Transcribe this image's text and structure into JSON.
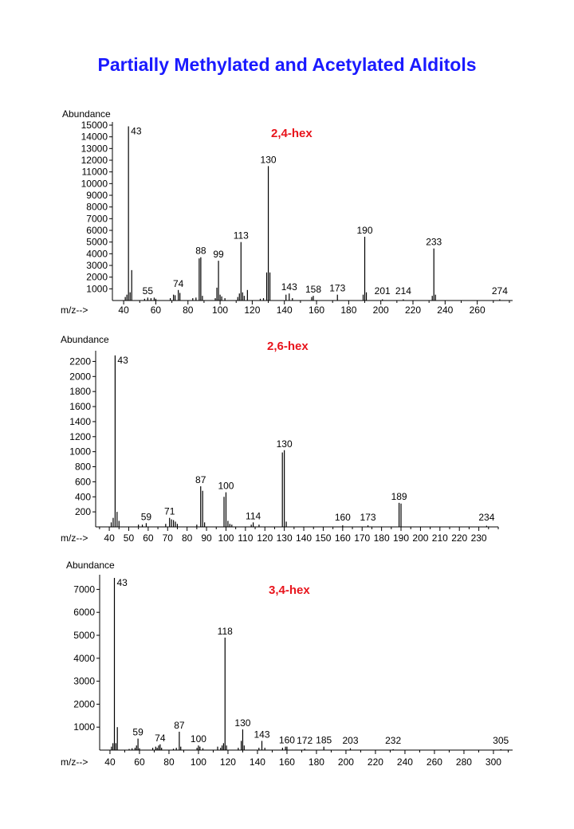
{
  "title": "Partially Methylated and Acetylated Alditols",
  "colors": {
    "title": "#1a1aff",
    "chart_label": "#e8141c",
    "axis": "#000000",
    "peaks": "#000000"
  },
  "chart_data": [
    {
      "type": "bar",
      "label": "2,4-hex",
      "ylabel": "Abundance",
      "xlabel": "m/z-->",
      "xlim": [
        33,
        282
      ],
      "ylim": [
        0,
        15000
      ],
      "yticks": [
        1000,
        2000,
        3000,
        4000,
        5000,
        6000,
        7000,
        8000,
        9000,
        10000,
        11000,
        12000,
        13000,
        14000,
        15000
      ],
      "xticks": [
        40,
        60,
        80,
        100,
        120,
        140,
        160,
        180,
        200,
        220,
        240,
        260
      ],
      "peaks": [
        {
          "mz": 41,
          "v": 300
        },
        {
          "mz": 42,
          "v": 500
        },
        {
          "mz": 43,
          "v": 14900
        },
        {
          "mz": 44,
          "v": 700
        },
        {
          "mz": 45,
          "v": 2600
        },
        {
          "mz": 53,
          "v": 150
        },
        {
          "mz": 55,
          "v": 250
        },
        {
          "mz": 57,
          "v": 200
        },
        {
          "mz": 59,
          "v": 250
        },
        {
          "mz": 60,
          "v": 150
        },
        {
          "mz": 69,
          "v": 200
        },
        {
          "mz": 71,
          "v": 500
        },
        {
          "mz": 72,
          "v": 450
        },
        {
          "mz": 74,
          "v": 900
        },
        {
          "mz": 75,
          "v": 650
        },
        {
          "mz": 83,
          "v": 200
        },
        {
          "mz": 85,
          "v": 250
        },
        {
          "mz": 87,
          "v": 3600
        },
        {
          "mz": 88,
          "v": 3700
        },
        {
          "mz": 89,
          "v": 400
        },
        {
          "mz": 97,
          "v": 200
        },
        {
          "mz": 98,
          "v": 1100
        },
        {
          "mz": 99,
          "v": 3400
        },
        {
          "mz": 100,
          "v": 500
        },
        {
          "mz": 101,
          "v": 350
        },
        {
          "mz": 103,
          "v": 200
        },
        {
          "mz": 111,
          "v": 300
        },
        {
          "mz": 112,
          "v": 600
        },
        {
          "mz": 113,
          "v": 5000
        },
        {
          "mz": 114,
          "v": 700
        },
        {
          "mz": 115,
          "v": 400
        },
        {
          "mz": 117,
          "v": 900
        },
        {
          "mz": 125,
          "v": 150
        },
        {
          "mz": 127,
          "v": 200
        },
        {
          "mz": 129,
          "v": 2400
        },
        {
          "mz": 130,
          "v": 11500
        },
        {
          "mz": 131,
          "v": 2400
        },
        {
          "mz": 141,
          "v": 500
        },
        {
          "mz": 143,
          "v": 600
        },
        {
          "mz": 145,
          "v": 200
        },
        {
          "mz": 157,
          "v": 300
        },
        {
          "mz": 158,
          "v": 400
        },
        {
          "mz": 173,
          "v": 500
        },
        {
          "mz": 189,
          "v": 500
        },
        {
          "mz": 190,
          "v": 5450
        },
        {
          "mz": 191,
          "v": 700
        },
        {
          "mz": 201,
          "v": 100
        },
        {
          "mz": 214,
          "v": 100
        },
        {
          "mz": 232,
          "v": 400
        },
        {
          "mz": 233,
          "v": 4450
        },
        {
          "mz": 234,
          "v": 500
        },
        {
          "mz": 274,
          "v": 100
        }
      ],
      "labels": [
        {
          "mz": 43,
          "text": "43"
        },
        {
          "mz": 55,
          "text": "55"
        },
        {
          "mz": 74,
          "text": "74"
        },
        {
          "mz": 88,
          "text": "88"
        },
        {
          "mz": 99,
          "text": "99"
        },
        {
          "mz": 113,
          "text": "113"
        },
        {
          "mz": 130,
          "text": "130"
        },
        {
          "mz": 143,
          "text": "143"
        },
        {
          "mz": 158,
          "text": "158"
        },
        {
          "mz": 173,
          "text": "173"
        },
        {
          "mz": 190,
          "text": "190"
        },
        {
          "mz": 201,
          "text": "201"
        },
        {
          "mz": 214,
          "text": "214"
        },
        {
          "mz": 233,
          "text": "233"
        },
        {
          "mz": 274,
          "text": "274"
        }
      ]
    },
    {
      "type": "bar",
      "label": "2,6-hex",
      "ylabel": "Abundance",
      "xlabel": "m/z-->",
      "xlim": [
        33,
        240
      ],
      "ylim": [
        0,
        2300
      ],
      "yticks": [
        200,
        400,
        600,
        800,
        1000,
        1200,
        1400,
        1600,
        1800,
        2000,
        2200
      ],
      "xticks": [
        40,
        50,
        60,
        70,
        80,
        90,
        100,
        110,
        120,
        130,
        140,
        150,
        160,
        170,
        180,
        190,
        200,
        210,
        220,
        230
      ],
      "peaks": [
        {
          "mz": 41,
          "v": 60
        },
        {
          "mz": 42,
          "v": 120
        },
        {
          "mz": 43,
          "v": 2280
        },
        {
          "mz": 44,
          "v": 200
        },
        {
          "mz": 45,
          "v": 80
        },
        {
          "mz": 55,
          "v": 30
        },
        {
          "mz": 57,
          "v": 30
        },
        {
          "mz": 59,
          "v": 50
        },
        {
          "mz": 69,
          "v": 40
        },
        {
          "mz": 71,
          "v": 120
        },
        {
          "mz": 72,
          "v": 100
        },
        {
          "mz": 73,
          "v": 90
        },
        {
          "mz": 74,
          "v": 70
        },
        {
          "mz": 75,
          "v": 40
        },
        {
          "mz": 85,
          "v": 30
        },
        {
          "mz": 87,
          "v": 540
        },
        {
          "mz": 88,
          "v": 480
        },
        {
          "mz": 89,
          "v": 60
        },
        {
          "mz": 99,
          "v": 400
        },
        {
          "mz": 100,
          "v": 460
        },
        {
          "mz": 101,
          "v": 80
        },
        {
          "mz": 102,
          "v": 40
        },
        {
          "mz": 103,
          "v": 30
        },
        {
          "mz": 113,
          "v": 30
        },
        {
          "mz": 114,
          "v": 60
        },
        {
          "mz": 117,
          "v": 30
        },
        {
          "mz": 129,
          "v": 990
        },
        {
          "mz": 130,
          "v": 1020
        },
        {
          "mz": 131,
          "v": 70
        },
        {
          "mz": 160,
          "v": 20
        },
        {
          "mz": 173,
          "v": 20
        },
        {
          "mz": 189,
          "v": 320
        },
        {
          "mz": 190,
          "v": 310
        },
        {
          "mz": 234,
          "v": 15
        }
      ],
      "labels": [
        {
          "mz": 43,
          "text": "43"
        },
        {
          "mz": 59,
          "text": "59"
        },
        {
          "mz": 71,
          "text": "71"
        },
        {
          "mz": 87,
          "text": "87"
        },
        {
          "mz": 100,
          "text": "100"
        },
        {
          "mz": 114,
          "text": "114"
        },
        {
          "mz": 130,
          "text": "130"
        },
        {
          "mz": 160,
          "text": "160"
        },
        {
          "mz": 173,
          "text": "173"
        },
        {
          "mz": 189,
          "text": "189"
        },
        {
          "mz": 234,
          "text": "234"
        }
      ]
    },
    {
      "type": "bar",
      "label": "3,4-hex",
      "ylabel": "Abundance",
      "xlabel": "m/z-->",
      "xlim": [
        33,
        313
      ],
      "ylim": [
        0,
        7500
      ],
      "yticks": [
        1000,
        2000,
        3000,
        4000,
        5000,
        6000,
        7000
      ],
      "xticks": [
        40,
        60,
        80,
        100,
        120,
        140,
        160,
        180,
        200,
        220,
        240,
        260,
        280,
        300
      ],
      "peaks": [
        {
          "mz": 41,
          "v": 150
        },
        {
          "mz": 42,
          "v": 300
        },
        {
          "mz": 43,
          "v": 7500
        },
        {
          "mz": 44,
          "v": 300
        },
        {
          "mz": 45,
          "v": 1000
        },
        {
          "mz": 53,
          "v": 50
        },
        {
          "mz": 55,
          "v": 80
        },
        {
          "mz": 57,
          "v": 100
        },
        {
          "mz": 58,
          "v": 200
        },
        {
          "mz": 59,
          "v": 500
        },
        {
          "mz": 60,
          "v": 80
        },
        {
          "mz": 69,
          "v": 100
        },
        {
          "mz": 71,
          "v": 150
        },
        {
          "mz": 72,
          "v": 100
        },
        {
          "mz": 73,
          "v": 200
        },
        {
          "mz": 74,
          "v": 250
        },
        {
          "mz": 75,
          "v": 100
        },
        {
          "mz": 83,
          "v": 60
        },
        {
          "mz": 85,
          "v": 100
        },
        {
          "mz": 87,
          "v": 800
        },
        {
          "mz": 88,
          "v": 150
        },
        {
          "mz": 99,
          "v": 100
        },
        {
          "mz": 100,
          "v": 200
        },
        {
          "mz": 101,
          "v": 150
        },
        {
          "mz": 103,
          "v": 80
        },
        {
          "mz": 113,
          "v": 150
        },
        {
          "mz": 115,
          "v": 100
        },
        {
          "mz": 116,
          "v": 200
        },
        {
          "mz": 117,
          "v": 300
        },
        {
          "mz": 118,
          "v": 4900
        },
        {
          "mz": 119,
          "v": 200
        },
        {
          "mz": 127,
          "v": 100
        },
        {
          "mz": 129,
          "v": 400
        },
        {
          "mz": 130,
          "v": 900
        },
        {
          "mz": 131,
          "v": 200
        },
        {
          "mz": 141,
          "v": 100
        },
        {
          "mz": 143,
          "v": 400
        },
        {
          "mz": 145,
          "v": 100
        },
        {
          "mz": 157,
          "v": 100
        },
        {
          "mz": 159,
          "v": 150
        },
        {
          "mz": 160,
          "v": 150
        },
        {
          "mz": 172,
          "v": 60
        },
        {
          "mz": 185,
          "v": 150
        },
        {
          "mz": 203,
          "v": 80
        },
        {
          "mz": 232,
          "v": 40
        },
        {
          "mz": 305,
          "v": 40
        }
      ],
      "labels": [
        {
          "mz": 43,
          "text": "43"
        },
        {
          "mz": 59,
          "text": "59"
        },
        {
          "mz": 74,
          "text": "74"
        },
        {
          "mz": 87,
          "text": "87"
        },
        {
          "mz": 100,
          "text": "100"
        },
        {
          "mz": 118,
          "text": "118"
        },
        {
          "mz": 130,
          "text": "130"
        },
        {
          "mz": 143,
          "text": "143"
        },
        {
          "mz": 160,
          "text": "160"
        },
        {
          "mz": 172,
          "text": "172"
        },
        {
          "mz": 185,
          "text": "185"
        },
        {
          "mz": 203,
          "text": "203"
        },
        {
          "mz": 232,
          "text": "232"
        },
        {
          "mz": 305,
          "text": "305"
        }
      ]
    }
  ]
}
